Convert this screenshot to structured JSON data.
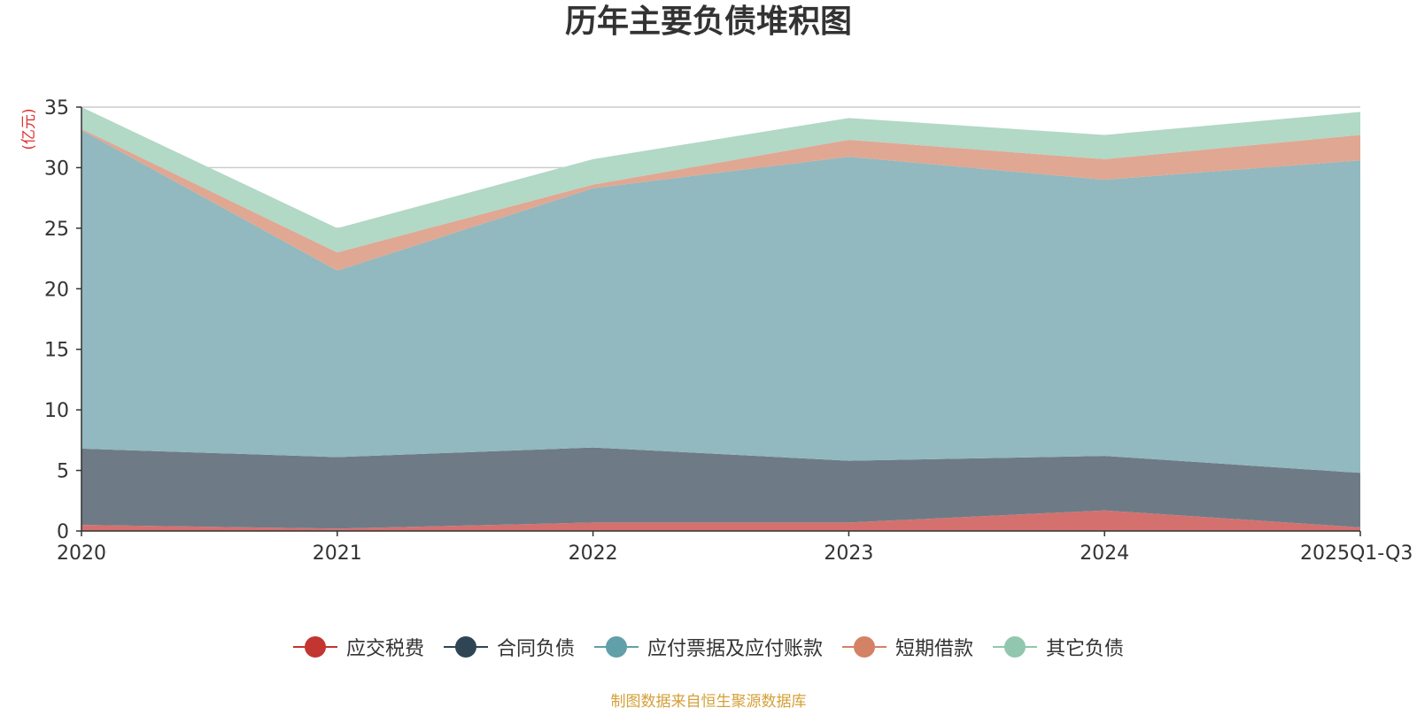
{
  "chart_data": {
    "type": "area",
    "stacked": true,
    "title": "历年主要负债堆积图",
    "ylabel": "(亿元)",
    "xlabel": "",
    "ylim": [
      0,
      35
    ],
    "yticks": [
      0,
      5,
      10,
      15,
      20,
      25,
      30,
      35
    ],
    "categories": [
      "2020",
      "2021",
      "2022",
      "2023",
      "2024",
      "2025Q1-Q3"
    ],
    "grid": true,
    "legend_position": "bottom",
    "series": [
      {
        "name": "应交税费",
        "color": "#c23531",
        "fill": "#d4716f",
        "values": [
          0.5,
          0.2,
          0.7,
          0.7,
          1.7,
          0.3
        ]
      },
      {
        "name": "合同负债",
        "color": "#2f4554",
        "fill": "#6e7b86",
        "values": [
          6.3,
          5.9,
          6.2,
          5.1,
          4.5,
          4.5
        ]
      },
      {
        "name": "应付票据及应付账款",
        "color": "#61a0a8",
        "fill": "#91b9bf",
        "values": [
          26.3,
          15.4,
          21.4,
          25.1,
          22.8,
          25.8
        ]
      },
      {
        "name": "短期借款",
        "color": "#d48265",
        "fill": "#e0a793",
        "values": [
          0.1,
          1.5,
          0.3,
          1.4,
          1.7,
          2.1
        ]
      },
      {
        "name": "其它负债",
        "color": "#91c7ae",
        "fill": "#b2d8c6",
        "values": [
          1.8,
          2.0,
          2.1,
          1.8,
          2.0,
          1.9
        ]
      }
    ]
  },
  "footer": {
    "source": "制图数据来自恒生聚源数据库"
  }
}
